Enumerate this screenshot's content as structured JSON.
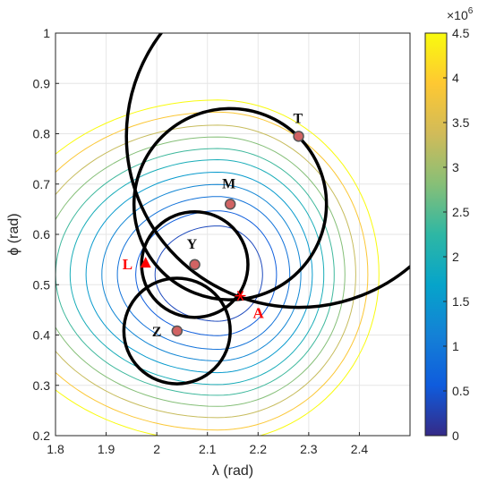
{
  "chart_data": {
    "type": "contour",
    "xlabel": "λ (rad)",
    "ylabel": "ϕ (rad)",
    "xlim": [
      1.8,
      2.5
    ],
    "ylim": [
      0.2,
      1.0
    ],
    "xticks": [
      "1.8",
      "1.9",
      "2",
      "2.1",
      "2.2",
      "2.3",
      "2.4"
    ],
    "yticks": [
      "0.2",
      "0.3",
      "0.4",
      "0.5",
      "0.6",
      "0.7",
      "0.8",
      "0.9",
      "1"
    ],
    "grid": true,
    "colorbar": {
      "colormap": "parula",
      "range": [
        0,
        4500000
      ],
      "multiplier": "×10",
      "exponent": "6",
      "tick_labels": [
        "0",
        "0.5",
        "1",
        "1.5",
        "2",
        "2.5",
        "3",
        "3.5",
        "4",
        "4.5"
      ]
    },
    "contour_levels": [
      0.35,
      0.6,
      0.9,
      1.2,
      1.55,
      1.95,
      2.35,
      2.8,
      3.3,
      3.9,
      4.5
    ],
    "contour_center": {
      "x": 2.12,
      "y": 0.52
    },
    "points": [
      {
        "label": "T",
        "x": 2.28,
        "y": 0.795
      },
      {
        "label": "M",
        "x": 2.145,
        "y": 0.66
      },
      {
        "label": "Y",
        "x": 2.075,
        "y": 0.54
      },
      {
        "label": "Z",
        "x": 2.04,
        "y": 0.408
      }
    ],
    "circles": [
      {
        "name": "T",
        "cx": 2.28,
        "cy": 0.795,
        "r": 0.34
      },
      {
        "name": "M",
        "cx": 2.145,
        "cy": 0.66,
        "r": 0.19
      },
      {
        "name": "Y",
        "cx": 2.075,
        "cy": 0.54,
        "r": 0.105
      },
      {
        "name": "Z",
        "cx": 2.04,
        "cy": 0.408,
        "r": 0.105
      }
    ],
    "true_location": {
      "label": "L",
      "x": 1.978,
      "y": 0.543,
      "marker": "triangle",
      "color": "#ff0000"
    },
    "estimate": {
      "label": "A",
      "x": 2.165,
      "y": 0.478,
      "marker": "asterisk",
      "color": "#ff0000"
    }
  }
}
